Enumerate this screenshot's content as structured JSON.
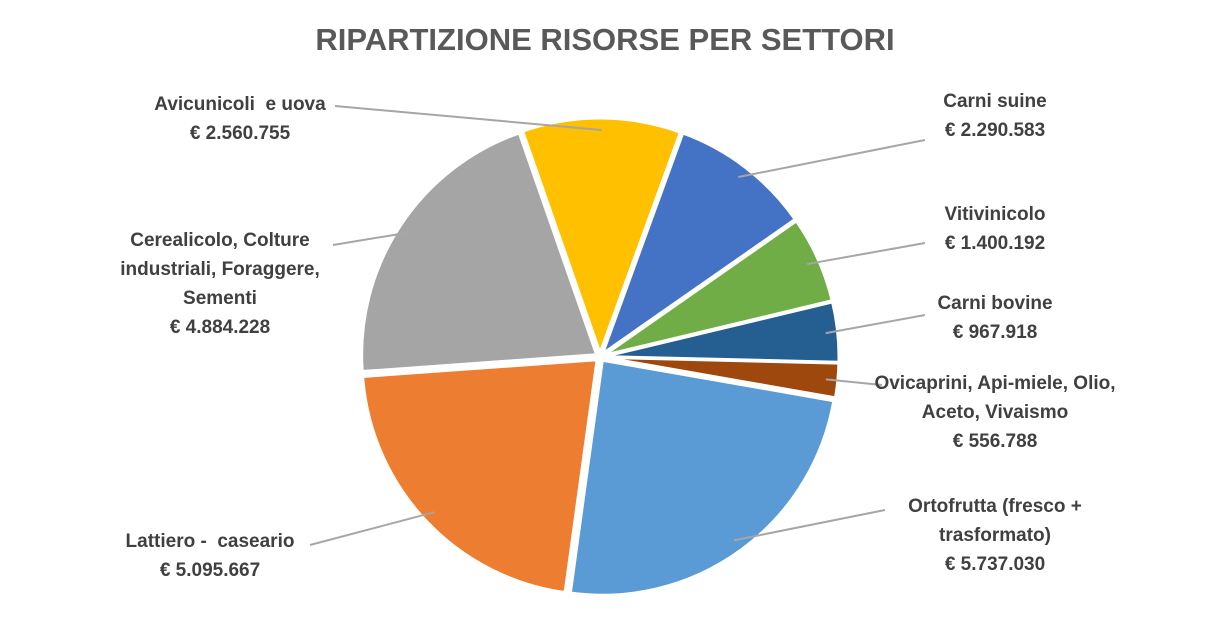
{
  "chart_data": {
    "type": "pie",
    "title": "RIPARTIZIONE RISORSE PER SETTORI",
    "categories": [
      "Carni suine",
      "Vitivinicolo",
      "Carni bovine",
      "Ovicaprini, Api-miele, Olio, Aceto, Vivaismo",
      "Ortofrutta (fresco + trasformato)",
      "Lattiero -  caseario",
      "Cerealicolo, Colture industriali, Foraggere, Sementi",
      "Avicunicoli  e uova"
    ],
    "values": [
      2290583,
      1400192,
      967918,
      556788,
      5737030,
      5095667,
      4884228,
      2560755
    ],
    "value_labels": [
      "€ 2.290.583",
      "€ 1.400.192",
      "€ 967.918",
      "€ 556.788",
      "€ 5.737.030",
      "€ 5.095.667",
      "€ 4.884.228",
      "€ 2.560.755"
    ],
    "colors": [
      "#4472c4",
      "#70ad47",
      "#255e91",
      "#9e480e",
      "#5b9bd5",
      "#ed7d31",
      "#a5a5a5",
      "#ffc000"
    ]
  }
}
